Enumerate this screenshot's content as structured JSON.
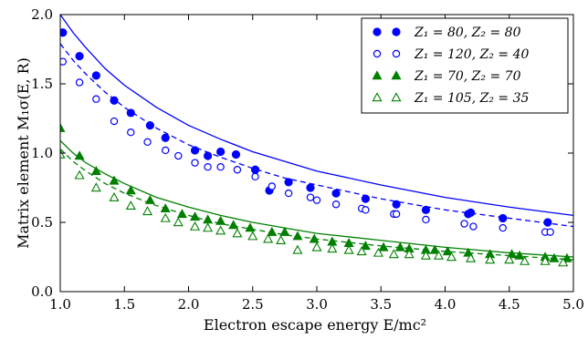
{
  "chart_data": {
    "type": "scatter",
    "xlabel": "Electron escape energy  E/mc²",
    "ylabel": "Matrix element  M₁σ(E, R)",
    "xlim": [
      1.0,
      5.0
    ],
    "ylim": [
      0.0,
      2.0
    ],
    "xticks": [
      "1.0",
      "1.5",
      "2.0",
      "2.5",
      "3.0",
      "3.5",
      "4.0",
      "4.5",
      "5.0"
    ],
    "yticks": [
      "0.0",
      "0.5",
      "1.0",
      "1.5",
      "2.0"
    ],
    "grid": false,
    "legend_position": "top-right",
    "colors": {
      "blue": "#0000ff",
      "green": "#008000"
    },
    "series": [
      {
        "name": "Z₁ =  80,  Z₂ = 80",
        "marker": "filled-circle",
        "color": "#0000ff",
        "line": "solid",
        "curve": [
          [
            1.0,
            2.0
          ],
          [
            1.1,
            1.87
          ],
          [
            1.2,
            1.76
          ],
          [
            1.35,
            1.61
          ],
          [
            1.5,
            1.49
          ],
          [
            1.75,
            1.33
          ],
          [
            2.0,
            1.2
          ],
          [
            2.25,
            1.1
          ],
          [
            2.5,
            1.01
          ],
          [
            2.75,
            0.94
          ],
          [
            3.0,
            0.87
          ],
          [
            3.5,
            0.77
          ],
          [
            4.0,
            0.68
          ],
          [
            4.5,
            0.61
          ],
          [
            5.0,
            0.55
          ]
        ],
        "points": [
          [
            1.02,
            1.87
          ],
          [
            1.15,
            1.7
          ],
          [
            1.28,
            1.56
          ],
          [
            1.42,
            1.38
          ],
          [
            1.55,
            1.29
          ],
          [
            1.7,
            1.2
          ],
          [
            1.82,
            1.11
          ],
          [
            2.05,
            1.02
          ],
          [
            2.15,
            0.98
          ],
          [
            2.25,
            1.01
          ],
          [
            2.37,
            0.99
          ],
          [
            2.52,
            0.88
          ],
          [
            2.63,
            0.73
          ],
          [
            2.78,
            0.79
          ],
          [
            2.95,
            0.75
          ],
          [
            3.15,
            0.71
          ],
          [
            3.38,
            0.67
          ],
          [
            3.62,
            0.63
          ],
          [
            3.85,
            0.59
          ],
          [
            4.18,
            0.56
          ],
          [
            4.2,
            0.57
          ],
          [
            4.45,
            0.53
          ],
          [
            4.8,
            0.5
          ]
        ]
      },
      {
        "name": "Z₁ = 120,  Z₂ = 40",
        "marker": "open-circle",
        "color": "#0000ff",
        "line": "dashed",
        "curve": [
          [
            1.0,
            1.79
          ],
          [
            1.1,
            1.67
          ],
          [
            1.2,
            1.57
          ],
          [
            1.35,
            1.44
          ],
          [
            1.5,
            1.33
          ],
          [
            1.75,
            1.18
          ],
          [
            2.0,
            1.06
          ],
          [
            2.25,
            0.97
          ],
          [
            2.5,
            0.89
          ],
          [
            2.75,
            0.82
          ],
          [
            3.0,
            0.77
          ],
          [
            3.5,
            0.67
          ],
          [
            4.0,
            0.59
          ],
          [
            4.5,
            0.53
          ],
          [
            5.0,
            0.47
          ]
        ],
        "points": [
          [
            1.02,
            1.66
          ],
          [
            1.15,
            1.51
          ],
          [
            1.28,
            1.39
          ],
          [
            1.42,
            1.23
          ],
          [
            1.55,
            1.15
          ],
          [
            1.68,
            1.08
          ],
          [
            1.82,
            1.02
          ],
          [
            1.92,
            0.98
          ],
          [
            2.05,
            0.93
          ],
          [
            2.15,
            0.9
          ],
          [
            2.25,
            0.9
          ],
          [
            2.38,
            0.88
          ],
          [
            2.52,
            0.83
          ],
          [
            2.65,
            0.76
          ],
          [
            2.78,
            0.71
          ],
          [
            2.95,
            0.68
          ],
          [
            3.0,
            0.66
          ],
          [
            3.15,
            0.63
          ],
          [
            3.35,
            0.6
          ],
          [
            3.38,
            0.59
          ],
          [
            3.6,
            0.56
          ],
          [
            3.62,
            0.56
          ],
          [
            3.85,
            0.52
          ],
          [
            4.15,
            0.49
          ],
          [
            4.22,
            0.47
          ],
          [
            4.45,
            0.46
          ],
          [
            4.78,
            0.43
          ],
          [
            4.82,
            0.43
          ]
        ]
      },
      {
        "name": "Z₁ =  70,  Z₂ = 70",
        "marker": "filled-triangle",
        "color": "#008000",
        "line": "solid",
        "curve": [
          [
            1.0,
            1.09
          ],
          [
            1.1,
            1.0
          ],
          [
            1.2,
            0.93
          ],
          [
            1.35,
            0.85
          ],
          [
            1.5,
            0.78
          ],
          [
            1.75,
            0.68
          ],
          [
            2.0,
            0.61
          ],
          [
            2.25,
            0.55
          ],
          [
            2.5,
            0.5
          ],
          [
            2.75,
            0.46
          ],
          [
            3.0,
            0.42
          ],
          [
            3.5,
            0.37
          ],
          [
            4.0,
            0.32
          ],
          [
            4.5,
            0.28
          ],
          [
            5.0,
            0.25
          ]
        ],
        "points": [
          [
            1.0,
            1.18
          ],
          [
            1.15,
            0.98
          ],
          [
            1.28,
            0.87
          ],
          [
            1.42,
            0.8
          ],
          [
            1.55,
            0.73
          ],
          [
            1.7,
            0.66
          ],
          [
            1.82,
            0.6
          ],
          [
            1.95,
            0.56
          ],
          [
            2.05,
            0.54
          ],
          [
            2.15,
            0.52
          ],
          [
            2.25,
            0.51
          ],
          [
            2.35,
            0.48
          ],
          [
            2.48,
            0.46
          ],
          [
            2.65,
            0.43
          ],
          [
            2.75,
            0.43
          ],
          [
            2.85,
            0.4
          ],
          [
            2.98,
            0.38
          ],
          [
            3.12,
            0.36
          ],
          [
            3.25,
            0.35
          ],
          [
            3.38,
            0.33
          ],
          [
            3.52,
            0.32
          ],
          [
            3.65,
            0.32
          ],
          [
            3.72,
            0.31
          ],
          [
            3.85,
            0.3
          ],
          [
            3.92,
            0.3
          ],
          [
            4.02,
            0.29
          ],
          [
            4.18,
            0.28
          ],
          [
            4.35,
            0.27
          ],
          [
            4.52,
            0.27
          ],
          [
            4.58,
            0.26
          ],
          [
            4.78,
            0.25
          ],
          [
            4.85,
            0.24
          ],
          [
            4.95,
            0.24
          ]
        ]
      },
      {
        "name": "Z₁ = 105,  Z₂ = 35",
        "marker": "open-triangle",
        "color": "#008000",
        "line": "dashed",
        "curve": [
          [
            1.0,
            1.03
          ],
          [
            1.1,
            0.94
          ],
          [
            1.2,
            0.87
          ],
          [
            1.35,
            0.78
          ],
          [
            1.5,
            0.71
          ],
          [
            1.75,
            0.62
          ],
          [
            2.0,
            0.55
          ],
          [
            2.25,
            0.49
          ],
          [
            2.5,
            0.45
          ],
          [
            2.75,
            0.41
          ],
          [
            3.0,
            0.38
          ],
          [
            3.5,
            0.33
          ],
          [
            4.0,
            0.29
          ],
          [
            4.5,
            0.26
          ],
          [
            5.0,
            0.23
          ]
        ],
        "points": [
          [
            1.0,
            0.99
          ],
          [
            1.15,
            0.84
          ],
          [
            1.28,
            0.75
          ],
          [
            1.42,
            0.68
          ],
          [
            1.55,
            0.62
          ],
          [
            1.68,
            0.58
          ],
          [
            1.82,
            0.53
          ],
          [
            1.92,
            0.5
          ],
          [
            2.05,
            0.47
          ],
          [
            2.15,
            0.46
          ],
          [
            2.25,
            0.44
          ],
          [
            2.38,
            0.42
          ],
          [
            2.5,
            0.4
          ],
          [
            2.62,
            0.38
          ],
          [
            2.72,
            0.37
          ],
          [
            2.85,
            0.3
          ],
          [
            3.0,
            0.32
          ],
          [
            3.12,
            0.31
          ],
          [
            3.25,
            0.3
          ],
          [
            3.35,
            0.29
          ],
          [
            3.48,
            0.28
          ],
          [
            3.6,
            0.27
          ],
          [
            3.72,
            0.27
          ],
          [
            3.85,
            0.26
          ],
          [
            3.95,
            0.26
          ],
          [
            4.05,
            0.25
          ],
          [
            4.2,
            0.24
          ],
          [
            4.35,
            0.23
          ],
          [
            4.5,
            0.23
          ],
          [
            4.62,
            0.22
          ],
          [
            4.78,
            0.22
          ],
          [
            4.92,
            0.21
          ]
        ]
      }
    ]
  }
}
